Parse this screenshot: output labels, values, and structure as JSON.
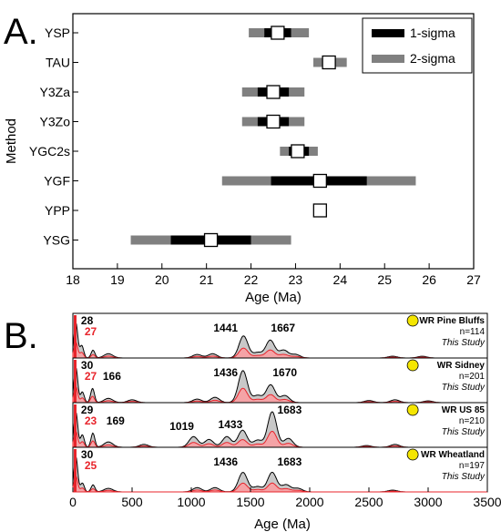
{
  "panel_a_letter": "A.",
  "panel_b_letter": "B.",
  "chart_data": [
    {
      "type": "range",
      "panel": "A.",
      "xlabel": "Age (Ma)",
      "ylabel": "Method",
      "xlim": [
        18,
        27
      ],
      "xticks": [
        18,
        19,
        20,
        21,
        22,
        23,
        24,
        25,
        26,
        27
      ],
      "legend": {
        "placement": "top-right",
        "entries": [
          {
            "label": "1-sigma",
            "color": "#000000"
          },
          {
            "label": "2-sigma",
            "color": "#808080"
          }
        ]
      },
      "rows": [
        {
          "method": "YSP",
          "age": 22.6,
          "s1": [
            22.3,
            22.9
          ],
          "s2": [
            21.95,
            23.3
          ]
        },
        {
          "method": "TAU",
          "age": 23.75,
          "s1": [
            23.6,
            23.9
          ],
          "s2": [
            23.4,
            24.15
          ]
        },
        {
          "method": "Y3Za",
          "age": 22.5,
          "s1": [
            22.15,
            22.85
          ],
          "s2": [
            21.8,
            23.2
          ]
        },
        {
          "method": "Y3Zo",
          "age": 22.5,
          "s1": [
            22.15,
            22.85
          ],
          "s2": [
            21.8,
            23.2
          ]
        },
        {
          "method": "YGC2s",
          "age": 23.05,
          "s1": [
            22.85,
            23.3
          ],
          "s2": [
            22.65,
            23.5
          ]
        },
        {
          "method": "YGF",
          "age": 23.55,
          "s1": [
            22.45,
            24.6
          ],
          "s2": [
            21.35,
            25.7
          ]
        },
        {
          "method": "YPP",
          "age": 23.55,
          "s1": null,
          "s2": null
        },
        {
          "method": "YSG",
          "age": 21.1,
          "s1": [
            20.2,
            22.0
          ],
          "s2": [
            19.3,
            22.9
          ]
        }
      ]
    },
    {
      "type": "area",
      "panel": "B.",
      "xlabel": "Age (Ma)",
      "xlim": [
        0,
        3500
      ],
      "xticks": [
        0,
        500,
        1000,
        1500,
        2000,
        2500,
        3000,
        3500
      ],
      "marker_color": "#f5e600",
      "series": [
        {
          "name": "WR Pine Bluffs",
          "n": "n=114",
          "source": "This Study",
          "labels": [
            {
              "text": "28",
              "x": 120,
              "color": "black"
            },
            {
              "text": "27",
              "x": 150,
              "color": "red"
            },
            {
              "text": "1441",
              "x": 1290,
              "color": "black"
            },
            {
              "text": "1667",
              "x": 1775,
              "color": "black"
            }
          ],
          "peaks": [
            {
              "x": 25,
              "h": 1.0
            },
            {
              "x": 75,
              "h": 0.35
            },
            {
              "x": 170,
              "h": 0.22
            },
            {
              "x": 300,
              "h": 0.12
            },
            {
              "x": 1050,
              "h": 0.1
            },
            {
              "x": 1180,
              "h": 0.12
            },
            {
              "x": 1441,
              "h": 0.62
            },
            {
              "x": 1560,
              "h": 0.15
            },
            {
              "x": 1667,
              "h": 0.5
            },
            {
              "x": 1780,
              "h": 0.22
            },
            {
              "x": 1880,
              "h": 0.1
            },
            {
              "x": 2700,
              "h": 0.05
            },
            {
              "x": 2950,
              "h": 0.05
            }
          ]
        },
        {
          "name": "WR Sidney",
          "n": "n=201",
          "source": "This Study",
          "labels": [
            {
              "text": "30",
              "x": 120,
              "color": "black"
            },
            {
              "text": "27",
              "x": 150,
              "color": "red"
            },
            {
              "text": "166",
              "x": 330,
              "color": "black"
            },
            {
              "text": "1436",
              "x": 1290,
              "color": "black"
            },
            {
              "text": "1670",
              "x": 1790,
              "color": "black"
            }
          ],
          "peaks": [
            {
              "x": 25,
              "h": 1.0
            },
            {
              "x": 80,
              "h": 0.3
            },
            {
              "x": 166,
              "h": 0.4
            },
            {
              "x": 300,
              "h": 0.12
            },
            {
              "x": 500,
              "h": 0.08
            },
            {
              "x": 1050,
              "h": 0.1
            },
            {
              "x": 1200,
              "h": 0.15
            },
            {
              "x": 1436,
              "h": 0.9
            },
            {
              "x": 1560,
              "h": 0.2
            },
            {
              "x": 1670,
              "h": 0.5
            },
            {
              "x": 1790,
              "h": 0.2
            },
            {
              "x": 2500,
              "h": 0.06
            },
            {
              "x": 2720,
              "h": 0.08
            },
            {
              "x": 3000,
              "h": 0.05
            }
          ]
        },
        {
          "name": "WR US 85",
          "n": "n=210",
          "source": "This Study",
          "labels": [
            {
              "text": "29",
              "x": 120,
              "color": "black"
            },
            {
              "text": "23",
              "x": 150,
              "color": "red"
            },
            {
              "text": "169",
              "x": 360,
              "color": "black"
            },
            {
              "text": "1019",
              "x": 920,
              "color": "black"
            },
            {
              "text": "1433",
              "x": 1330,
              "color": "black"
            },
            {
              "text": "1683",
              "x": 1830,
              "color": "black"
            }
          ],
          "peaks": [
            {
              "x": 25,
              "h": 1.0
            },
            {
              "x": 80,
              "h": 0.35
            },
            {
              "x": 169,
              "h": 0.4
            },
            {
              "x": 300,
              "h": 0.15
            },
            {
              "x": 600,
              "h": 0.08
            },
            {
              "x": 1019,
              "h": 0.3
            },
            {
              "x": 1150,
              "h": 0.22
            },
            {
              "x": 1300,
              "h": 0.3
            },
            {
              "x": 1433,
              "h": 0.48
            },
            {
              "x": 1560,
              "h": 0.2
            },
            {
              "x": 1683,
              "h": 1.0
            },
            {
              "x": 1820,
              "h": 0.25
            },
            {
              "x": 2480,
              "h": 0.05
            },
            {
              "x": 2720,
              "h": 0.08
            }
          ]
        },
        {
          "name": "WR Wheatland",
          "n": "n=197",
          "source": "This Study",
          "labels": [
            {
              "text": "30",
              "x": 120,
              "color": "black"
            },
            {
              "text": "25",
              "x": 150,
              "color": "red"
            },
            {
              "text": "1436",
              "x": 1290,
              "color": "black"
            },
            {
              "text": "1683",
              "x": 1830,
              "color": "black"
            }
          ],
          "peaks": [
            {
              "x": 25,
              "h": 1.0
            },
            {
              "x": 80,
              "h": 0.25
            },
            {
              "x": 170,
              "h": 0.2
            },
            {
              "x": 300,
              "h": 0.1
            },
            {
              "x": 1050,
              "h": 0.12
            },
            {
              "x": 1200,
              "h": 0.12
            },
            {
              "x": 1436,
              "h": 0.55
            },
            {
              "x": 1560,
              "h": 0.15
            },
            {
              "x": 1683,
              "h": 0.55
            },
            {
              "x": 1800,
              "h": 0.2
            },
            {
              "x": 1900,
              "h": 0.1
            },
            {
              "x": 2700,
              "h": 0.05
            }
          ]
        }
      ]
    }
  ]
}
